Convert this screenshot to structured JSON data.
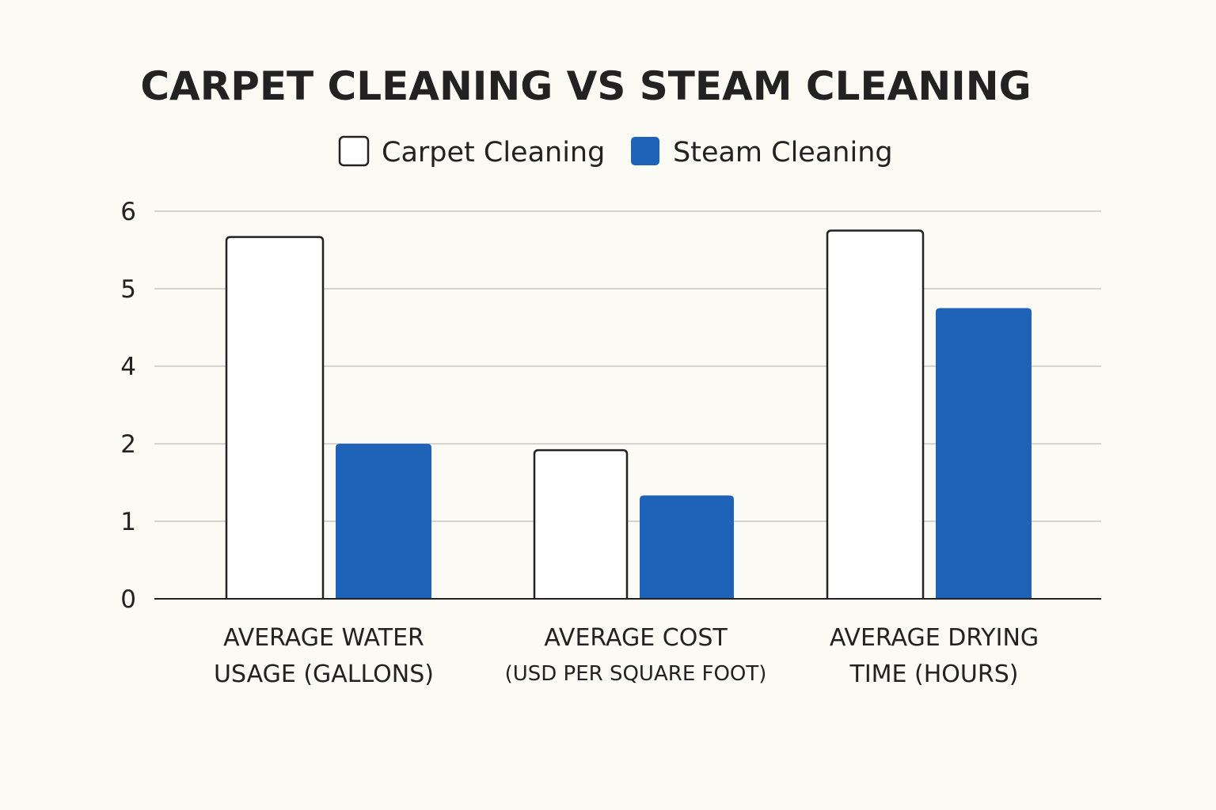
{
  "colors": {
    "background": "#fcfaf5",
    "text": "#222222",
    "gridline": "#c8c8c8",
    "axis": "#222222",
    "carpet_fill": "#ffffff",
    "carpet_stroke": "#222222",
    "steam_fill": "#1f63b8"
  },
  "chart_data": {
    "type": "bar",
    "title": "CARPET CLEANING VS STEAM CLEANING",
    "xlabel": "",
    "ylabel": "",
    "yticks": [
      "0",
      "1",
      "2",
      "4",
      "5",
      "6"
    ],
    "grid": true,
    "legend_position": "top-center",
    "categories": [
      {
        "line1": "AVERAGE WATER",
        "line2": "USAGE (GALLONS)"
      },
      {
        "line1": "AVERAGE COST",
        "line2": "(USD PER SQUARE FOOT)"
      },
      {
        "line1": "AVERAGE DRYING",
        "line2": "TIME (HOURS)"
      }
    ],
    "series": [
      {
        "name": "Carpet Cleaning",
        "values": [
          5.6,
          2.3,
          5.7
        ]
      },
      {
        "name": "Steam Cleaning",
        "values": [
          2.4,
          1.6,
          4.5
        ]
      }
    ]
  }
}
